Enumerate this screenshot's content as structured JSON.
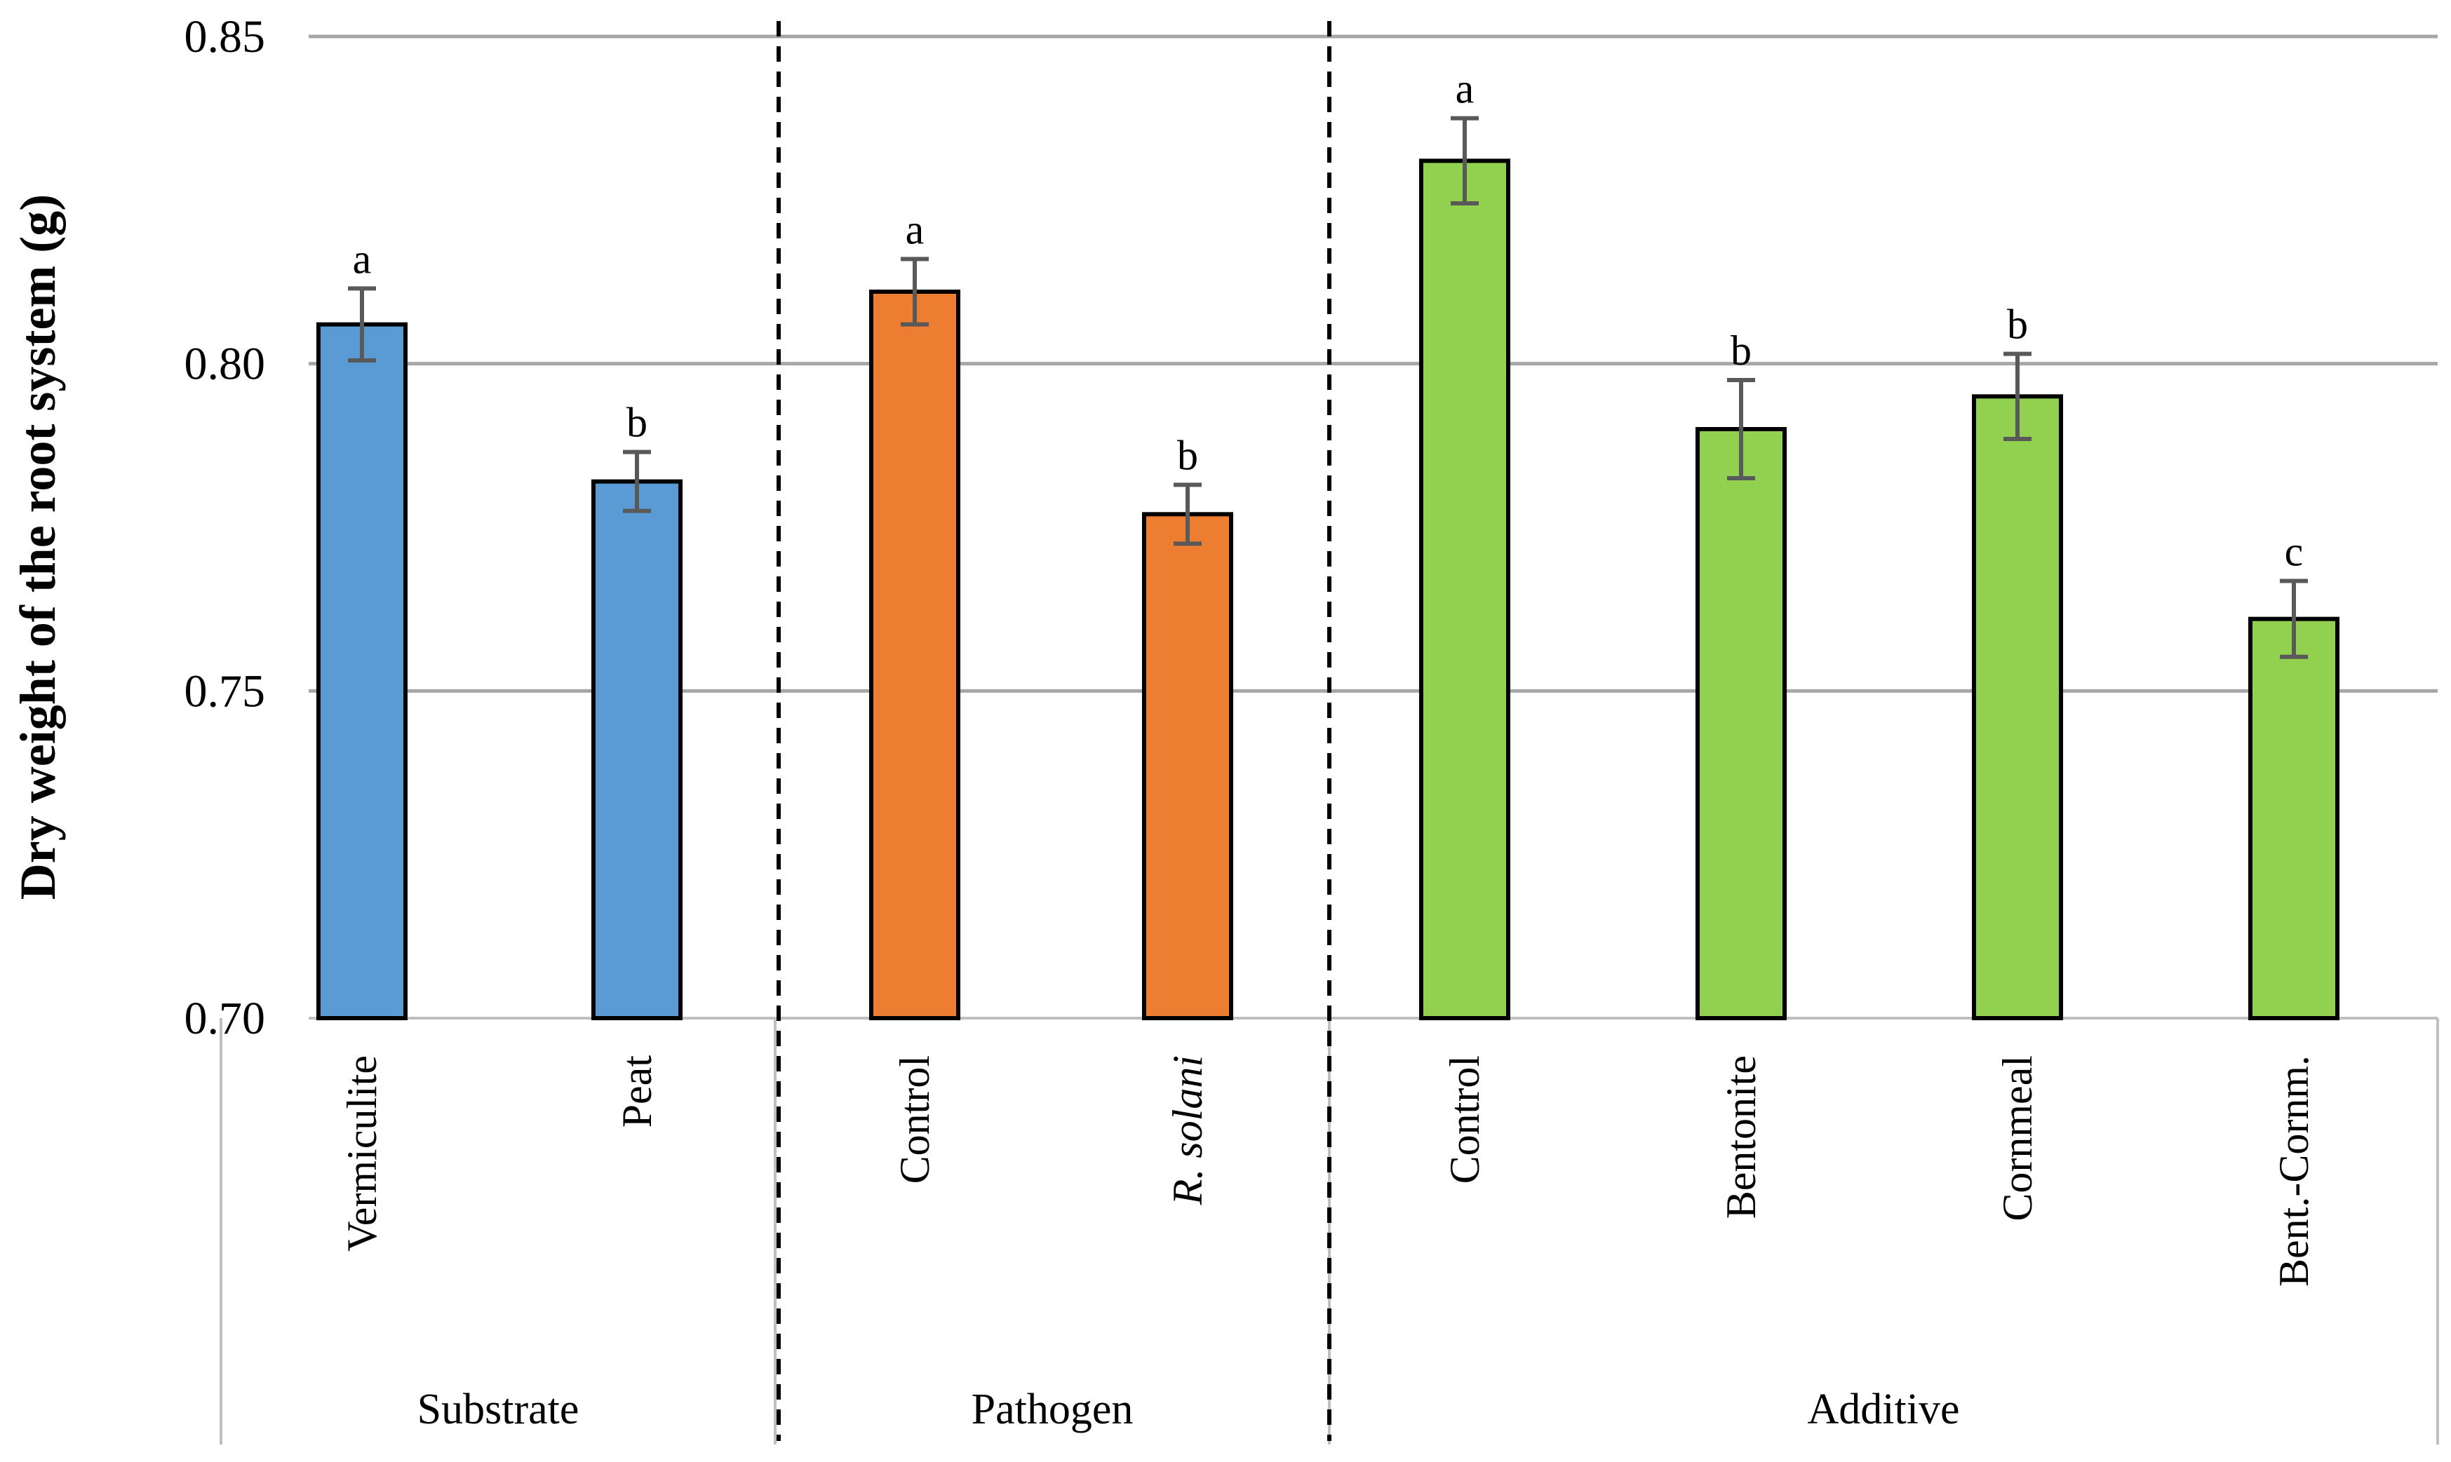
{
  "chart_data": {
    "type": "bar",
    "ylabel": "Dry weight of the root system (g)",
    "ylim": [
      0.7,
      0.85
    ],
    "yticks": [
      "0.70",
      "0.75",
      "0.80",
      "0.85"
    ],
    "ytick_values": [
      0.7,
      0.75,
      0.8,
      0.85
    ],
    "grid": true,
    "groups": [
      {
        "name": "Substrate",
        "color": "#5b9bd5",
        "bars": [
          {
            "category": "Vermiculite",
            "value": 0.806,
            "error": 0.0055,
            "letter": "a",
            "italic": false
          },
          {
            "category": "Peat",
            "value": 0.782,
            "error": 0.0045,
            "letter": "b",
            "italic": false
          }
        ]
      },
      {
        "name": "Pathogen",
        "color": "#ed7d31",
        "bars": [
          {
            "category": "Control",
            "value": 0.811,
            "error": 0.005,
            "letter": "a",
            "italic": false
          },
          {
            "category": "R. solani",
            "value": 0.777,
            "error": 0.0045,
            "letter": "b",
            "italic": true
          }
        ]
      },
      {
        "name": "Additive",
        "color": "#92d050",
        "bars": [
          {
            "category": "Control",
            "value": 0.831,
            "error": 0.0065,
            "letter": "a",
            "italic": false
          },
          {
            "category": "Bentonite",
            "value": 0.79,
            "error": 0.0075,
            "letter": "b",
            "italic": false
          },
          {
            "category": "Cornmeal",
            "value": 0.795,
            "error": 0.0065,
            "letter": "b",
            "italic": false
          },
          {
            "category": "Bent.-Cornm.",
            "value": 0.761,
            "error": 0.0058,
            "letter": "c",
            "italic": false
          }
        ]
      }
    ]
  }
}
